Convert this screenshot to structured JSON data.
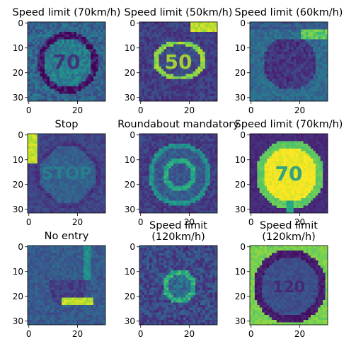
{
  "chart_data": {
    "type": "heatmap",
    "colormap": "viridis",
    "grid": false,
    "panels": [
      {
        "title": [
          "Speed limit (70km/h)"
        ],
        "subject": "circle-70",
        "bg": 0.32,
        "ring": 0.05,
        "fill": 0.42,
        "text": "70",
        "text_level": 0.12,
        "noise": 0.12
      },
      {
        "title": [
          "Speed limit (50km/h)"
        ],
        "subject": "circle-50-tilted",
        "bg": 0.18,
        "ring": 0.82,
        "fill": 0.22,
        "text": "50",
        "text_level": 0.88,
        "noise": 0.08
      },
      {
        "title": [
          "Speed limit (60km/h)"
        ],
        "subject": "dark-circle",
        "bg": 0.35,
        "ring": 0.12,
        "fill": 0.15,
        "text": "",
        "text_level": 0.1,
        "noise": 0.08
      },
      {
        "title": [
          "Stop"
        ],
        "subject": "octagon-stop",
        "bg": 0.2,
        "ring": 0.15,
        "fill": 0.3,
        "text": "STOP",
        "text_level": 0.45,
        "noise": 0.06
      },
      {
        "title": [
          "Roundabout mandatory"
        ],
        "subject": "roundabout",
        "bg": 0.18,
        "ring": 0.5,
        "fill": 0.28,
        "text": "",
        "text_level": 0.6,
        "noise": 0.08
      },
      {
        "title": [
          "Speed limit (70km/h)"
        ],
        "subject": "circle-70-bright",
        "bg": 0.12,
        "ring": 0.75,
        "fill": 0.98,
        "text": "70",
        "text_level": 0.55,
        "noise": 0.04
      },
      {
        "title": [
          "No entry"
        ],
        "subject": "no-entry",
        "bg": 0.28,
        "ring": 0.05,
        "fill": 0.18,
        "text": "",
        "text_level": 0.9,
        "noise": 0.07
      },
      {
        "title": [
          "Speed limit",
          "(120km/h)"
        ],
        "subject": "small-circle",
        "bg": 0.22,
        "ring": 0.62,
        "fill": 0.35,
        "text": "",
        "text_level": 0.7,
        "noise": 0.12
      },
      {
        "title": [
          "Speed limit",
          "(120km/h)"
        ],
        "subject": "circle-120",
        "bg": 0.8,
        "ring": 0.08,
        "fill": 0.24,
        "text": "120",
        "text_level": 0.1,
        "noise": 0.05
      }
    ],
    "x_ticks": [
      0,
      20
    ],
    "y_ticks": [
      0,
      10,
      20,
      30
    ],
    "image_size": [
      32,
      32
    ]
  }
}
